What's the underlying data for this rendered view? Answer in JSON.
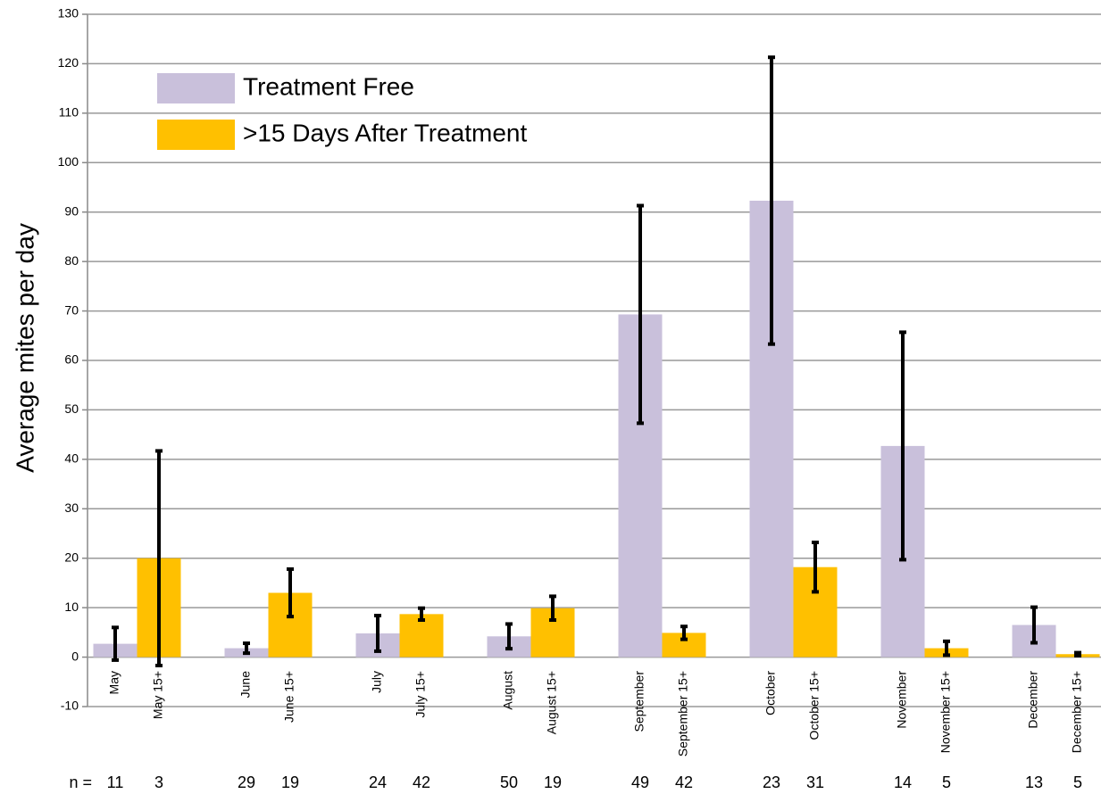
{
  "chart_data": {
    "type": "bar",
    "y_label": "Average mites per day",
    "categories": [
      "May",
      "May 15+",
      "June",
      "June 15+",
      "July",
      "July 15+",
      "August",
      "August 15+",
      "September",
      "September 15+",
      "October",
      "October 15+",
      "November",
      "November 15+",
      "December",
      "December 15+"
    ],
    "series": [
      {
        "name": "Treatment Free",
        "color": "#c9c0db",
        "values": [
          2.7,
          null,
          1.8,
          null,
          4.8,
          null,
          4.2,
          null,
          69.3,
          null,
          92.3,
          null,
          42.7,
          null,
          6.5,
          null
        ],
        "errors": [
          3.3,
          null,
          1,
          null,
          3.6,
          null,
          2.5,
          null,
          22,
          null,
          29,
          null,
          23,
          null,
          3.6,
          null
        ]
      },
      {
        "name": ">15 Days After Treatment",
        "color": "#ffc000",
        "values": [
          null,
          20,
          null,
          13,
          null,
          8.7,
          null,
          9.9,
          null,
          4.9,
          null,
          18.2,
          null,
          1.8,
          null,
          0.6
        ],
        "errors": [
          null,
          21.7,
          null,
          4.8,
          null,
          1.2,
          null,
          2.4,
          null,
          1.3,
          null,
          5,
          null,
          1.4,
          null,
          0.3
        ]
      }
    ],
    "ylim": [
      -10,
      130
    ],
    "yticks": [
      -10,
      0,
      10,
      20,
      30,
      40,
      50,
      60,
      70,
      80,
      90,
      100,
      110,
      120,
      130
    ],
    "grid": true,
    "legend": "top-left",
    "n_label": "n =",
    "n": [
      11,
      3,
      29,
      19,
      24,
      42,
      50,
      19,
      49,
      42,
      23,
      31,
      14,
      5,
      13,
      5
    ]
  }
}
